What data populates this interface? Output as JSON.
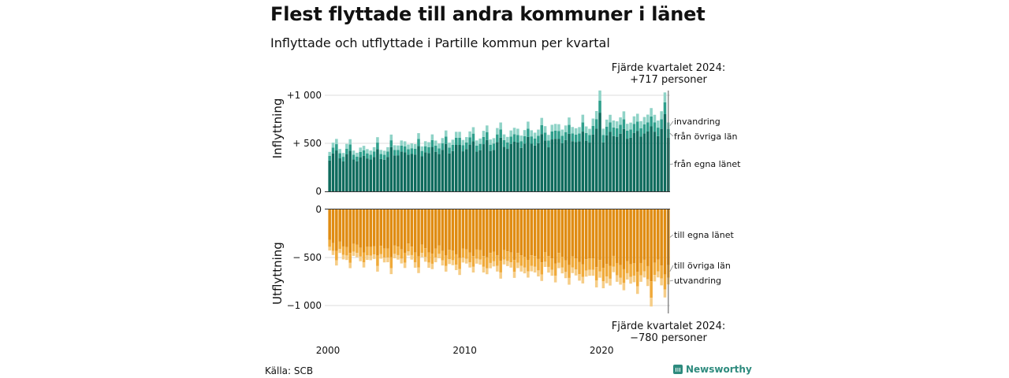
{
  "header": {
    "title": "Flest flyttade till andra kommuner i länet",
    "subtitle": "Inflyttade och utflyttade i Partille kommun per kvartal"
  },
  "footer": {
    "source": "Källa: SCB",
    "brand": "Newsworthy"
  },
  "annotations": {
    "top_line1": "Fjärde kvartalet 2024:",
    "top_line2": "+717 personer",
    "bottom_line1": "Fjärde kvartalet 2024:",
    "bottom_line2": "−780 personer"
  },
  "colors": {
    "in_own": "#0f6b5d",
    "in_other": "#2f9f8c",
    "in_imm": "#8fd3c7",
    "out_own": "#e08c12",
    "out_other": "#f0aa3a",
    "out_emig": "#f6cd87",
    "grid": "#dcdcdc"
  },
  "chart_data": [
    {
      "type": "bar",
      "stacked": true,
      "ylabel": "Inflyttning",
      "ylim": [
        0,
        1000
      ],
      "yticks": [
        {
          "value": 0,
          "label": "0"
        },
        {
          "value": 500,
          "label": "+  500"
        },
        {
          "value": 1000,
          "label": "+1 000"
        }
      ],
      "x_start": "2000 Q1",
      "x_end": "2024 Q4",
      "xticks": [
        {
          "year": 2000,
          "label": "2000"
        },
        {
          "year": 2010,
          "label": "2010"
        },
        {
          "year": 2020,
          "label": "2020"
        }
      ],
      "trend_knots": [
        [
          0,
          480
        ],
        [
          8,
          440
        ],
        [
          16,
          470
        ],
        [
          24,
          500
        ],
        [
          32,
          550
        ],
        [
          40,
          580
        ],
        [
          48,
          600
        ],
        [
          56,
          640
        ],
        [
          64,
          660
        ],
        [
          72,
          700
        ],
        [
          80,
          730
        ],
        [
          88,
          760
        ],
        [
          96,
          790
        ],
        [
          99,
          800
        ]
      ],
      "seasonal": [
        -40,
        10,
        70,
        -20
      ],
      "series": [
        {
          "name": "från egna länet",
          "share": 0.78,
          "last_value": 560
        },
        {
          "name": "från övriga län",
          "share": 0.12,
          "last_value": 90
        },
        {
          "name": "invandring",
          "share": 0.1,
          "last_value": 67
        }
      ],
      "last_quarter_total": 717,
      "ymax_observed": 1050
    },
    {
      "type": "bar",
      "stacked": true,
      "ylabel": "Utflyttning",
      "ylim": [
        -1000,
        0
      ],
      "yticks": [
        {
          "value": 0,
          "label": "0"
        },
        {
          "value": -500,
          "label": "−  500"
        },
        {
          "value": -1000,
          "label": "−1 000"
        }
      ],
      "trend_knots": [
        [
          0,
          500
        ],
        [
          8,
          520
        ],
        [
          16,
          540
        ],
        [
          24,
          560
        ],
        [
          32,
          580
        ],
        [
          40,
          600
        ],
        [
          48,
          610
        ],
        [
          56,
          640
        ],
        [
          64,
          660
        ],
        [
          72,
          690
        ],
        [
          80,
          720
        ],
        [
          88,
          760
        ],
        [
          96,
          780
        ],
        [
          99,
          790
        ]
      ],
      "seasonal": [
        -30,
        10,
        90,
        -40
      ],
      "series": [
        {
          "name": "till egna länet",
          "share": 0.74,
          "last_value": 580
        },
        {
          "name": "till övriga län",
          "share": 0.17,
          "last_value": 130
        },
        {
          "name": "utvandring",
          "share": 0.09,
          "last_value": 70
        }
      ],
      "last_quarter_total": -780,
      "ymin_observed": -1010
    }
  ]
}
